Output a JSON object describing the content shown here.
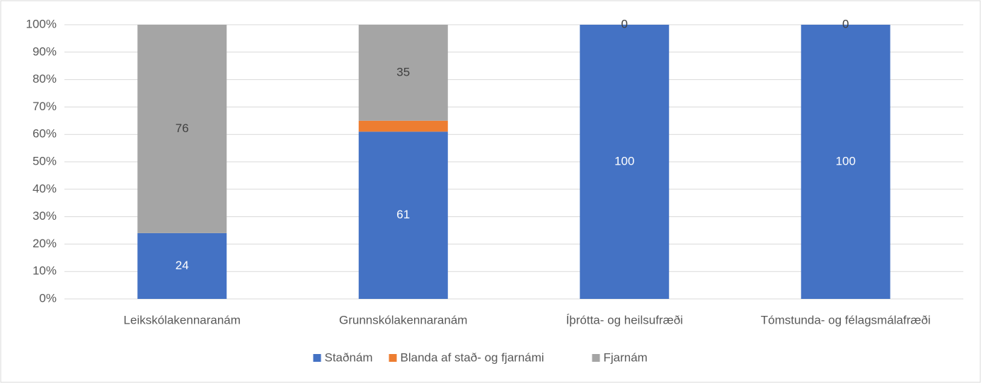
{
  "chart_data": {
    "type": "stacked_bar",
    "categories": [
      "Leikskólakennaranám",
      "Grunnskólakennaranám",
      "Íþrótta- og heilsufræði",
      "Tómstunda- og félagsmálafræði"
    ],
    "series": [
      {
        "name": "Staðnám",
        "color": "#4472c4",
        "values": [
          24,
          61,
          100,
          100
        ],
        "show_labels": true,
        "label_color": "#ffffff"
      },
      {
        "name": "Blanda af stað- og fjarnámi",
        "color": "#ed7d31",
        "values": [
          0,
          4,
          0,
          0
        ],
        "show_labels": false,
        "label_color": "#404040"
      },
      {
        "name": "Fjarnám",
        "color": "#a5a5a5",
        "values": [
          76,
          35,
          0,
          0
        ],
        "show_labels": true,
        "label_color": "#404040"
      }
    ],
    "ylim": [
      0,
      100
    ],
    "yticks": [
      {
        "value": 0,
        "label": "0%"
      },
      {
        "value": 10,
        "label": "10%"
      },
      {
        "value": 20,
        "label": "20%"
      },
      {
        "value": 30,
        "label": "30%"
      },
      {
        "value": 40,
        "label": "40%"
      },
      {
        "value": 50,
        "label": "50%"
      },
      {
        "value": 60,
        "label": "60%"
      },
      {
        "value": 70,
        "label": "70%"
      },
      {
        "value": 80,
        "label": "80%"
      },
      {
        "value": 90,
        "label": "90%"
      },
      {
        "value": 100,
        "label": "100%"
      }
    ],
    "grid": true,
    "legend": "bottom"
  }
}
